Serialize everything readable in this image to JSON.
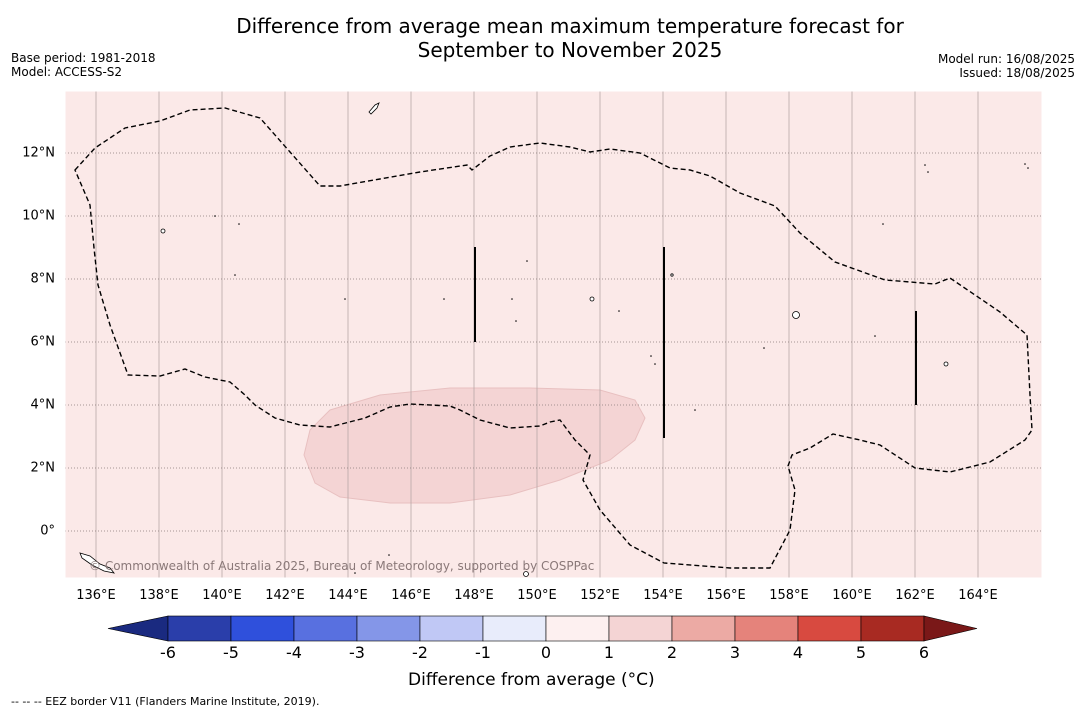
{
  "title_line1": "Difference from average mean maximum temperature forecast for",
  "title_line2": "September to November 2025",
  "base_period": "Base period: 1981-2018",
  "model": "Model: ACCESS-S2",
  "model_run": "Model run: 16/08/2025",
  "issued": "Issued: 18/08/2025",
  "copyright": "© Commonwealth of Australia 2025, Bureau of Meteorology, supported by COSPPac",
  "colorbar_label": "Difference from average (°C)",
  "footnote": "--  --  -- EEZ border V11 (Flanders Marine Institute, 2019).",
  "x_ticks": [
    "136°E",
    "138°E",
    "140°E",
    "142°E",
    "144°E",
    "146°E",
    "148°E",
    "150°E",
    "152°E",
    "154°E",
    "156°E",
    "158°E",
    "160°E",
    "162°E",
    "164°E"
  ],
  "y_ticks": [
    "12°N",
    "10°N",
    "8°N",
    "6°N",
    "4°N",
    "2°N",
    "0°"
  ],
  "colorbar_ticks": [
    "-6",
    "-5",
    "-4",
    "-3",
    "-2",
    "-1",
    "0",
    "1",
    "2",
    "3",
    "4",
    "5",
    "6"
  ],
  "colorbar_colors": [
    "#2a3eaa",
    "#2f50dc",
    "#5870e0",
    "#8496e8",
    "#c0c8f5",
    "#e8ecfb",
    "#fdf0f0",
    "#f4d4d4",
    "#ecaaa4",
    "#e5837b",
    "#d84a40",
    "#a82a22"
  ],
  "colorbar_low_ext": "#1a2a80",
  "colorbar_high_ext": "#7a1818",
  "map_fill_main": "#fbe9e8",
  "map_fill_warmer": "#f4d4d4"
}
